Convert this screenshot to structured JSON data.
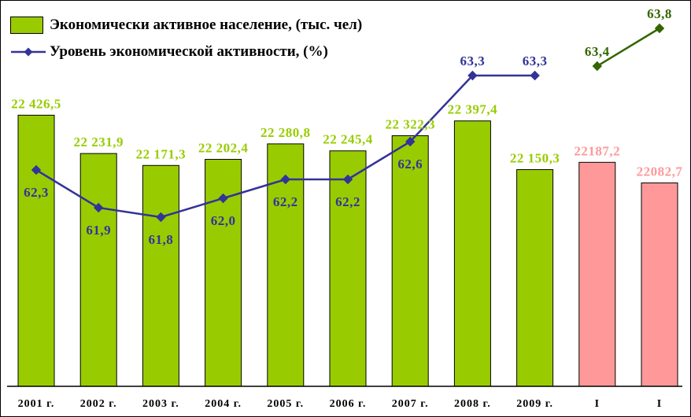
{
  "legend": {
    "bars_label": "Экономически активное население, (тыс. чел)",
    "line_label": "Уровень экономической активности, (%)"
  },
  "colors": {
    "bar_green": "#99CC00",
    "bar_pink": "#FF9999",
    "bar_border": "#000000",
    "line_blue": "#333399",
    "line_dark_green": "#336600",
    "label_green": "#99CC00",
    "label_pink": "#FF9999",
    "label_blue": "#333399",
    "label_dark_green": "#336600",
    "axis": "#000000"
  },
  "chart_data": {
    "type": "bar",
    "subtype": "bar+line combo",
    "categories": [
      "2001 г.",
      "2002 г.",
      "2003 г.",
      "2004 г.",
      "2005 г.",
      "2006 г.",
      "2007 г.",
      "2008 г.",
      "2009 г.",
      "I",
      "I"
    ],
    "series": [
      {
        "name": "Экономически активное население, (тыс. чел)",
        "type": "bar",
        "values": [
          22426.5,
          22231.9,
          22171.3,
          22202.4,
          22280.8,
          22245.4,
          22322.3,
          22397.4,
          22150.3,
          22187.2,
          22082.7
        ],
        "labels": [
          "22 426,5",
          "22 231,9",
          "22 171,3",
          "22 202,4",
          "22 280,8",
          "22 245,4",
          "22 322,3",
          "22 397,4",
          "22 150,3",
          "22187,2",
          "22082,7"
        ],
        "bar_colors": [
          "green",
          "green",
          "green",
          "green",
          "green",
          "green",
          "green",
          "green",
          "green",
          "pink",
          "pink"
        ]
      },
      {
        "name": "Уровень экономической активности, (%)",
        "type": "line",
        "values": [
          62.3,
          61.9,
          61.8,
          62.0,
          62.2,
          62.2,
          62.6,
          63.3,
          63.3,
          63.4,
          63.8
        ],
        "labels": [
          "62,3",
          "61,9",
          "61,8",
          "62,0",
          "62,2",
          "62,2",
          "62,6",
          "63,3",
          "63,3",
          "63,4",
          "63,8"
        ],
        "label_pos": [
          "below",
          "below",
          "below",
          "below",
          "below",
          "below",
          "below",
          "above",
          "above",
          "above",
          "above"
        ],
        "segments": [
          [
            0,
            8
          ],
          [
            9,
            10
          ]
        ],
        "segment_colors": [
          "blue",
          "dark_green"
        ]
      }
    ],
    "bar_axis_range": [
      21050,
      22500
    ],
    "line_axis_range": [
      61.5,
      64.0
    ],
    "grid": false,
    "legend_position": "top-left"
  }
}
